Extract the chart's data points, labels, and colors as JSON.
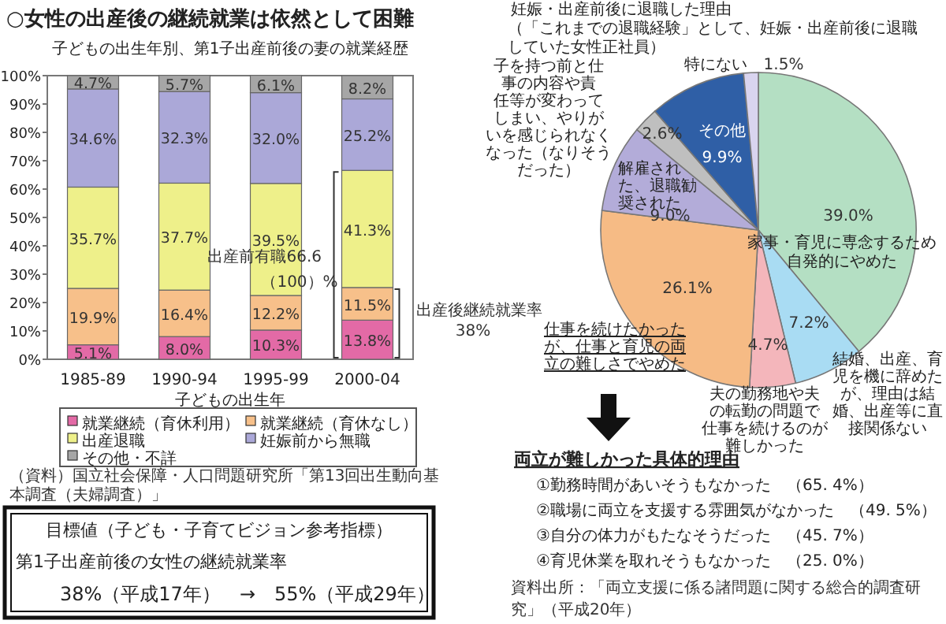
{
  "chart_data": [
    {
      "type": "bar",
      "title": "○女性の出産後の継続就業は依然として困難",
      "subtitle": "子どもの出生年別、第1子出産前後の妻の就業経歴",
      "xlabel": "子どもの出生年",
      "categories": [
        "1985-89",
        "1990-94",
        "1995-99",
        "2000-04"
      ],
      "stacked": true,
      "legend": "bottom",
      "ylim": [
        0,
        100
      ],
      "yticks": [
        {
          "value": 0,
          "label": "0%"
        },
        {
          "value": 10,
          "label": "10%"
        },
        {
          "value": 20,
          "label": "20%"
        },
        {
          "value": 30,
          "label": "30%"
        },
        {
          "value": 40,
          "label": "40%"
        },
        {
          "value": 50,
          "label": "50%"
        },
        {
          "value": 60,
          "label": "60%"
        },
        {
          "value": 70,
          "label": "70%"
        },
        {
          "value": 80,
          "label": "80%"
        },
        {
          "value": 90,
          "label": "90%"
        },
        {
          "value": 100,
          "label": "100%"
        }
      ],
      "series": [
        {
          "name": "就業継続（育休利用）",
          "color": "#e36aa6",
          "values": [
            5.1,
            8.0,
            10.3,
            13.8
          ],
          "value_labels": [
            "5.1%",
            "8.0%",
            "10.3%",
            "13.8%"
          ]
        },
        {
          "name": "就業継続（育休なし）",
          "color": "#f7c08a",
          "values": [
            19.9,
            16.4,
            12.2,
            11.5
          ],
          "value_labels": [
            "19.9%",
            "16.4%",
            "12.2%",
            "11.5%"
          ]
        },
        {
          "name": "出産退職",
          "color": "#eef08a",
          "values": [
            35.7,
            37.7,
            39.5,
            41.3
          ],
          "value_labels": [
            "35.7%",
            "37.7%",
            "39.5%",
            "41.3%"
          ]
        },
        {
          "name": "妊娠前から無職",
          "color": "#aba8d8",
          "values": [
            34.6,
            32.3,
            32.0,
            25.2
          ],
          "value_labels": [
            "34.6%",
            "32.3%",
            "32.0%",
            "25.2%"
          ]
        },
        {
          "name": "その他・不詳",
          "color": "#a6a6a6",
          "values": [
            4.7,
            5.7,
            6.1,
            8.2
          ],
          "value_labels": [
            "4.7%",
            "5.7%",
            "6.1%",
            "8.2%"
          ]
        }
      ],
      "annotations": [
        "出産前有職66.6",
        "（100）%",
        "出産後継続就業率",
        "38%",
        "（資料）国立社会保障・人口問題研究所「第13回出生動向基本調査（夫婦調査）」"
      ]
    },
    {
      "type": "pie",
      "title": "妊娠・出産前後に退職した理由",
      "subtitle": "（「これまでの退職経験」として、妊娠・出産前後に退職していた女性正社員）",
      "categories": [
        "家事・育児に専念するため自発的にやめた",
        "結婚、出産、育児を機に辞めたが、理由は結婚、出産等に直接関係ない",
        "夫の勤務地や夫の転勤の問題で仕事を続けるのが難しかった",
        "仕事を続けたかったが、仕事と育児の両立の難しさでやめた",
        "解雇された、退職勧奨された",
        "子を持つ前と仕事の内容や責任等が変わってしまい、やりがいを感じられなくなった（なりそうだった）",
        "その他",
        "特にない"
      ],
      "values": [
        39.0,
        7.2,
        4.7,
        26.1,
        9.0,
        2.6,
        9.9,
        1.5
      ],
      "value_labels": [
        "39.0%",
        "7.2%",
        "4.7%",
        "26.1%",
        "9.0%",
        "2.6%",
        "9.9%",
        "1.5%"
      ],
      "colors": [
        "#b4dfc3",
        "#a9dcf3",
        "#f4b6bb",
        "#f6bb85",
        "#b3acd9",
        "#bfbfbf",
        "#2f5fa6",
        "#d9d4ef"
      ],
      "annotations": [
        "両立が難しかった具体的理由",
        "①勤務時間があいそうもなかった　（65. 4%）",
        "②職場に両立を支援する雰囲気がなかった　（49. 5%）",
        "③自分の体力がもたなそうだった　（45. 7%）",
        "④育児休業を取れそうもなかった　（25. 0%）",
        "資料出所：「両立支援に係る諸問題に関する総合的調査研究」（平成20年）"
      ]
    },
    {
      "type": "other",
      "title": "目標値（子ども・子育てビジョン参考指標）",
      "annotations": [
        "第1子出産前後の女性の継続就業率",
        "38%（平成17年）　→　55%（平成29年）"
      ]
    }
  ]
}
